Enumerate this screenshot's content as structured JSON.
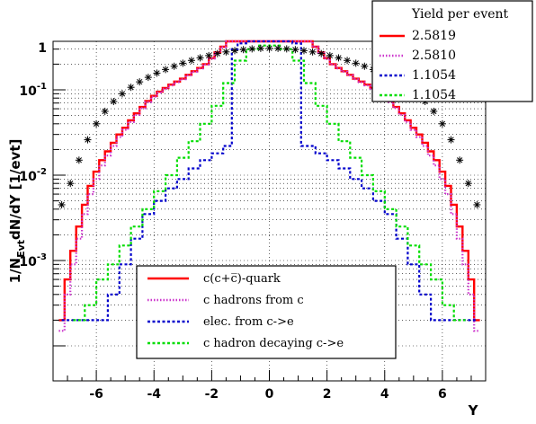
{
  "chart_data": {
    "type": "line",
    "title": "",
    "xlabel": "Y",
    "ylabel": "1/N_{Evt}dN/dY [1/evt]",
    "xlim": [
      -7.5,
      7.5
    ],
    "ylim": [
      0.0001,
      1.3
    ],
    "yscale": "log",
    "grid": true,
    "x_ticks": [
      -6,
      -4,
      -2,
      0,
      2,
      4,
      6
    ],
    "x_tick_labels": [
      "-6",
      "-4",
      "-2",
      "0",
      "2",
      "4",
      "6"
    ],
    "y_tick_labels": [
      {
        "value": 1,
        "base": "1",
        "exp": ""
      },
      {
        "value": 0.1,
        "base": "10",
        "exp": "-1"
      },
      {
        "value": 0.01,
        "base": "10",
        "exp": "-2"
      },
      {
        "value": 0.001,
        "base": "10",
        "exp": "-3"
      }
    ],
    "yield_box": {
      "header": "Yield per event",
      "entries": [
        {
          "value": "2.5819",
          "color": "#ff0000",
          "dash": "solid"
        },
        {
          "value": "2.5810",
          "color": "#cc33cc",
          "dash": "dotted"
        },
        {
          "value": "1.1054",
          "color": "#0000cc",
          "dash": "dashed"
        },
        {
          "value": "1.1054",
          "color": "#00dd00",
          "dash": "dashed"
        }
      ]
    },
    "legend": {
      "placement": "bottom-center",
      "entries": [
        {
          "label": "c(c+c̅)-quark",
          "color": "#ff0000",
          "dash": "solid"
        },
        {
          "label": "c hadrons from c",
          "color": "#cc33cc",
          "dash": "dotted"
        },
        {
          "label": "elec. from c->e",
          "color": "#0000cc",
          "dash": "dashed"
        },
        {
          "label": "c hadron decaying c->e",
          "color": "#00dd00",
          "dash": "dashed"
        }
      ]
    },
    "series": [
      {
        "color": "#ff0000",
        "style": "step-solid",
        "x": [
          -7.2,
          -7.0,
          -6.8,
          -6.6,
          -6.4,
          -6.2,
          -6.0,
          -5.8,
          -5.6,
          -5.4,
          -5.2,
          -5.0,
          -4.8,
          -4.6,
          -4.4,
          -4.2,
          -4.0,
          -3.8,
          -3.6,
          -3.4,
          -3.2,
          -3.0,
          -2.8,
          -2.6,
          -2.4,
          -2.2,
          -2.0,
          -1.8,
          -1.6,
          -1.4,
          -1.2,
          -1.0,
          -0.8,
          -0.6,
          -0.4,
          -0.2,
          0.0,
          0.2,
          0.4,
          0.6,
          0.8,
          1.0,
          1.2,
          1.4,
          1.6,
          1.8,
          2.0,
          2.2,
          2.4,
          2.6,
          2.8,
          3.0,
          3.2,
          3.4,
          3.6,
          3.8,
          4.0,
          4.2,
          4.4,
          4.6,
          4.8,
          5.0,
          5.2,
          5.4,
          5.6,
          5.8,
          6.0,
          6.2,
          6.4,
          6.6,
          6.8,
          7.0,
          7.2
        ],
        "values": [
          0.0002,
          0.0006,
          0.0013,
          0.0025,
          0.0045,
          0.0075,
          0.011,
          0.015,
          0.019,
          0.024,
          0.03,
          0.036,
          0.044,
          0.053,
          0.063,
          0.074,
          0.085,
          0.095,
          0.105,
          0.115,
          0.125,
          0.135,
          0.15,
          0.165,
          0.18,
          0.2,
          0.235,
          0.275,
          0.32,
          0.38,
          0.44,
          0.5,
          0.55,
          0.6,
          0.64,
          0.67,
          0.69,
          0.67,
          0.64,
          0.6,
          0.55,
          0.5,
          0.44,
          0.38,
          0.32,
          0.275,
          0.235,
          0.2,
          0.18,
          0.165,
          0.15,
          0.135,
          0.125,
          0.115,
          0.105,
          0.095,
          0.085,
          0.074,
          0.063,
          0.053,
          0.044,
          0.036,
          0.03,
          0.024,
          0.019,
          0.015,
          0.011,
          0.0075,
          0.0045,
          0.0025,
          0.0013,
          0.0006,
          0.0002
        ]
      },
      {
        "color": "#cc33cc",
        "style": "step-dotted",
        "x": [
          -7.2,
          -7.0,
          -6.8,
          -6.6,
          -6.4,
          -6.2,
          -6.0,
          -5.8,
          -5.6,
          -5.4,
          -5.2,
          -5.0,
          -4.8,
          -4.6,
          -4.4,
          -4.2,
          -4.0,
          -3.8,
          -3.6,
          -3.4,
          -3.2,
          -3.0,
          -2.8,
          -2.6,
          -2.4,
          -2.2,
          -2.0,
          -1.8,
          -1.6,
          -1.4,
          -1.2,
          -1.0,
          -0.8,
          -0.6,
          -0.4,
          -0.2,
          0.0,
          0.2,
          0.4,
          0.6,
          0.8,
          1.0,
          1.2,
          1.4,
          1.6,
          1.8,
          2.0,
          2.2,
          2.4,
          2.6,
          2.8,
          3.0,
          3.2,
          3.4,
          3.6,
          3.8,
          4.0,
          4.2,
          4.4,
          4.6,
          4.8,
          5.0,
          5.2,
          5.4,
          5.6,
          5.8,
          6.0,
          6.2,
          6.4,
          6.6,
          6.8,
          7.0,
          7.2
        ],
        "values": [
          0.00015,
          0.0004,
          0.0009,
          0.0018,
          0.0035,
          0.006,
          0.009,
          0.013,
          0.017,
          0.022,
          0.028,
          0.034,
          0.042,
          0.051,
          0.061,
          0.072,
          0.083,
          0.093,
          0.103,
          0.113,
          0.123,
          0.133,
          0.148,
          0.163,
          0.178,
          0.198,
          0.232,
          0.272,
          0.317,
          0.376,
          0.436,
          0.496,
          0.546,
          0.596,
          0.636,
          0.666,
          0.686,
          0.666,
          0.636,
          0.596,
          0.546,
          0.496,
          0.436,
          0.376,
          0.317,
          0.272,
          0.232,
          0.198,
          0.178,
          0.163,
          0.148,
          0.133,
          0.123,
          0.113,
          0.103,
          0.093,
          0.083,
          0.072,
          0.061,
          0.051,
          0.042,
          0.034,
          0.028,
          0.022,
          0.017,
          0.013,
          0.009,
          0.006,
          0.0035,
          0.0018,
          0.0009,
          0.0004,
          0.00015
        ]
      },
      {
        "color": "#0000cc",
        "style": "step-dashed",
        "x": [
          -7.0,
          -6.6,
          -6.2,
          -5.8,
          -5.4,
          -5.0,
          -4.6,
          -4.2,
          -3.8,
          -3.4,
          -3.0,
          -2.6,
          -2.2,
          -1.8,
          -1.4,
          -1.2,
          -1.0,
          -0.6,
          -0.2,
          0.2,
          0.6,
          1.0,
          1.2,
          1.4,
          1.8,
          2.2,
          2.6,
          3.0,
          3.4,
          3.8,
          4.2,
          4.6,
          5.0,
          5.4,
          5.8,
          6.2,
          6.6,
          7.0
        ],
        "values": [
          0.0002,
          0.0002,
          0.0002,
          0.0002,
          0.0004,
          0.0009,
          0.0018,
          0.0035,
          0.005,
          0.007,
          0.009,
          0.012,
          0.015,
          0.018,
          0.022,
          0.3,
          0.35,
          0.38,
          0.41,
          0.41,
          0.38,
          0.35,
          0.022,
          0.022,
          0.018,
          0.015,
          0.012,
          0.009,
          0.007,
          0.005,
          0.0035,
          0.0018,
          0.0009,
          0.0004,
          0.0002,
          0.0002,
          0.0002,
          0.0002
        ]
      },
      {
        "color": "#00dd00",
        "style": "step-dashed",
        "x": [
          -6.6,
          -6.2,
          -5.8,
          -5.4,
          -5.0,
          -4.6,
          -4.2,
          -3.8,
          -3.4,
          -3.0,
          -2.6,
          -2.2,
          -1.8,
          -1.4,
          -1.0,
          -0.6,
          -0.2,
          0.2,
          0.6,
          1.0,
          1.4,
          1.8,
          2.2,
          2.6,
          3.0,
          3.4,
          3.8,
          4.2,
          4.6,
          5.0,
          5.4,
          5.8,
          6.2,
          6.6
        ],
        "values": [
          0.0002,
          0.0003,
          0.0006,
          0.0009,
          0.0015,
          0.0025,
          0.004,
          0.0065,
          0.01,
          0.016,
          0.025,
          0.04,
          0.065,
          0.12,
          0.22,
          0.3,
          0.33,
          0.33,
          0.3,
          0.22,
          0.12,
          0.065,
          0.04,
          0.025,
          0.016,
          0.01,
          0.0065,
          0.004,
          0.0025,
          0.0015,
          0.0009,
          0.0006,
          0.0003,
          0.0002
        ]
      },
      {
        "color": "#000000",
        "style": "markers-star",
        "x": [
          -7.2,
          -6.9,
          -6.6,
          -6.3,
          -6.0,
          -5.7,
          -5.4,
          -5.1,
          -4.8,
          -4.5,
          -4.2,
          -3.9,
          -3.6,
          -3.3,
          -3.0,
          -2.7,
          -2.4,
          -2.1,
          -1.8,
          -1.5,
          -1.2,
          -0.9,
          -0.6,
          -0.3,
          0.0,
          0.3,
          0.6,
          0.9,
          1.2,
          1.5,
          1.8,
          2.1,
          2.4,
          2.7,
          3.0,
          3.3,
          3.6,
          3.9,
          4.2,
          4.5,
          4.8,
          5.1,
          5.4,
          5.7,
          6.0,
          6.3,
          6.6,
          6.9,
          7.2
        ],
        "values": [
          0.0045,
          0.008,
          0.015,
          0.026,
          0.04,
          0.056,
          0.073,
          0.09,
          0.107,
          0.124,
          0.14,
          0.157,
          0.173,
          0.189,
          0.205,
          0.221,
          0.237,
          0.252,
          0.266,
          0.278,
          0.288,
          0.296,
          0.302,
          0.306,
          0.307,
          0.306,
          0.302,
          0.296,
          0.288,
          0.278,
          0.266,
          0.252,
          0.237,
          0.221,
          0.205,
          0.189,
          0.173,
          0.157,
          0.14,
          0.124,
          0.107,
          0.09,
          0.073,
          0.056,
          0.04,
          0.026,
          0.015,
          0.008,
          0.0045
        ]
      }
    ]
  }
}
